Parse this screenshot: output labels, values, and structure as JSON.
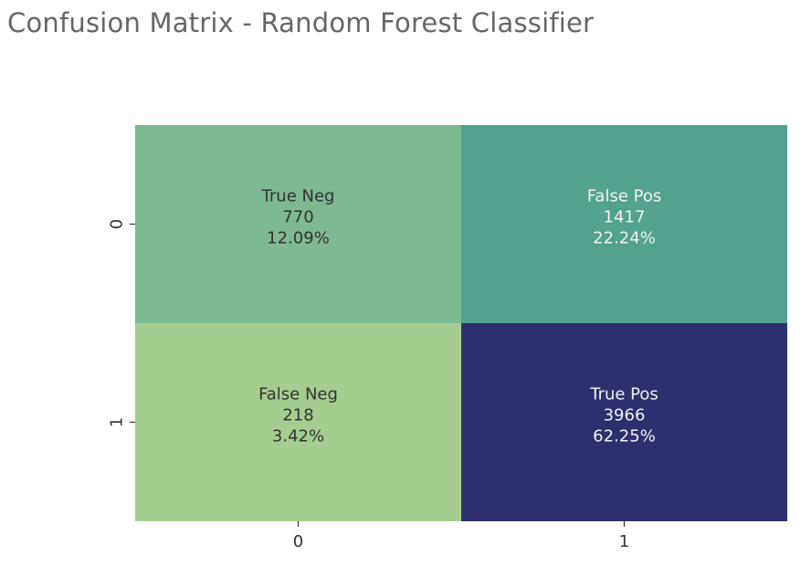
{
  "page": {
    "title": "Confusion Matrix - Random Forest Classifier"
  },
  "chart_data": {
    "type": "heatmap",
    "title": "",
    "xlabel": "",
    "ylabel": "",
    "x_tick_labels": [
      "0",
      "1"
    ],
    "y_tick_labels": [
      "0",
      "1"
    ],
    "values": [
      [
        770,
        1417
      ],
      [
        218,
        3966
      ]
    ],
    "cells": [
      {
        "row": 0,
        "col": 0,
        "name": "True Neg",
        "count": "770",
        "percent": "12.09%",
        "color": "#7db991",
        "text_color": "#333333"
      },
      {
        "row": 0,
        "col": 1,
        "name": "False Pos",
        "count": "1417",
        "percent": "22.24%",
        "color": "#53a18f",
        "text_color": "#f2f2f2"
      },
      {
        "row": 1,
        "col": 0,
        "name": "False Neg",
        "count": "218",
        "percent": "3.42%",
        "color": "#a5cd8f",
        "text_color": "#333333"
      },
      {
        "row": 1,
        "col": 1,
        "name": "True Pos",
        "count": "3966",
        "percent": "62.25%",
        "color": "#2d2f6e",
        "text_color": "#f2f2f2"
      }
    ],
    "colormap": "crest",
    "colorbar": false,
    "grid": false
  }
}
